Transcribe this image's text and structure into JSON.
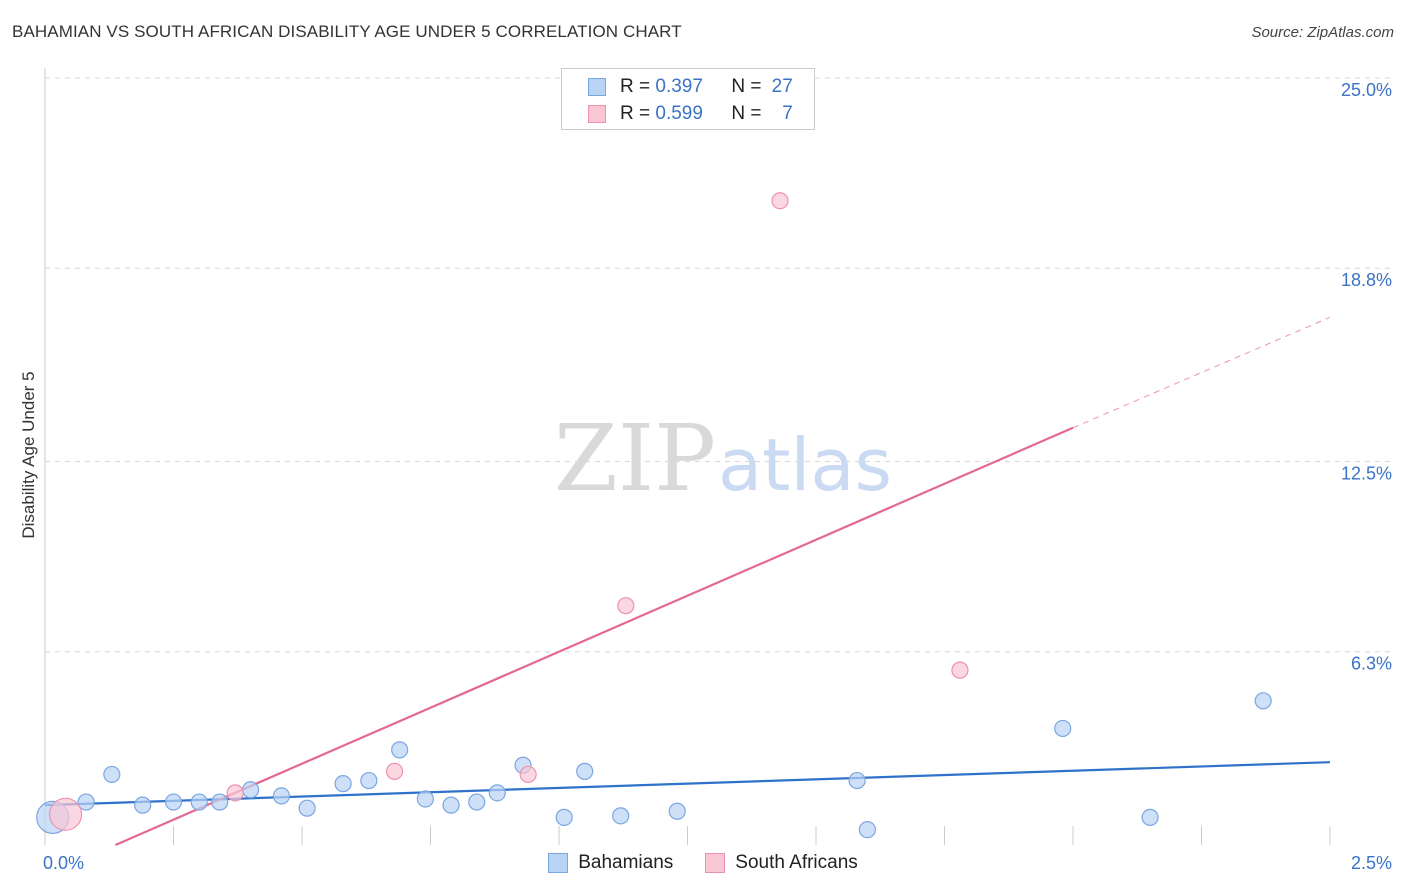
{
  "title": "BAHAMIAN VS SOUTH AFRICAN DISABILITY AGE UNDER 5 CORRELATION CHART",
  "source": "Source: ZipAtlas.com",
  "watermark": {
    "zip": "ZIP",
    "atlas": "atlas"
  },
  "colors": {
    "blue_fill": "#b9d3f5",
    "blue_stroke": "#7aa6e0",
    "blue_line": "#2f72c9",
    "pink_fill": "#f9c6d6",
    "pink_stroke": "#ec92ad",
    "pink_line": "#e4688f",
    "grid": "#d8d8d8",
    "label_blue": "#3b73c7"
  },
  "legend": {
    "rows": [
      {
        "swatch": "blue",
        "r_label": "R =",
        "r_value": "0.397",
        "n_label": "N =",
        "n_value": "27"
      },
      {
        "swatch": "pink",
        "r_label": "R =",
        "r_value": "0.599",
        "n_label": "N =",
        "n_value": "7"
      }
    ]
  },
  "bottom_legend": [
    {
      "swatch": "blue",
      "label": "Bahamians"
    },
    {
      "swatch": "pink",
      "label": "South Africans"
    }
  ],
  "chart_data": {
    "type": "scatter",
    "title": "BAHAMIAN VS SOUTH AFRICAN DISABILITY AGE UNDER 5 CORRELATION CHART",
    "xlabel": "",
    "ylabel": "Disability Age Under 5",
    "xlim": [
      0,
      2.5
    ],
    "ylim": [
      0,
      25.0
    ],
    "x_tick_labels": [
      "0.0%",
      "2.5%"
    ],
    "y_ticks": [
      6.3,
      12.5,
      18.8,
      25.0
    ],
    "y_tick_labels": [
      "6.3%",
      "12.5%",
      "18.8%",
      "25.0%"
    ],
    "grid": true,
    "legend_position": "top-center",
    "series": [
      {
        "name": "Bahamians",
        "color": "blue",
        "points": [
          {
            "x": 0.015,
            "y": 0.9,
            "size": "large"
          },
          {
            "x": 0.08,
            "y": 1.4
          },
          {
            "x": 0.13,
            "y": 2.3
          },
          {
            "x": 0.19,
            "y": 1.3
          },
          {
            "x": 0.25,
            "y": 1.4
          },
          {
            "x": 0.3,
            "y": 1.4
          },
          {
            "x": 0.34,
            "y": 1.4
          },
          {
            "x": 0.4,
            "y": 1.8
          },
          {
            "x": 0.46,
            "y": 1.6
          },
          {
            "x": 0.51,
            "y": 1.2
          },
          {
            "x": 0.58,
            "y": 2.0
          },
          {
            "x": 0.63,
            "y": 2.1
          },
          {
            "x": 0.69,
            "y": 3.1
          },
          {
            "x": 0.74,
            "y": 1.5
          },
          {
            "x": 0.79,
            "y": 1.3
          },
          {
            "x": 0.84,
            "y": 1.4
          },
          {
            "x": 0.88,
            "y": 1.7
          },
          {
            "x": 0.93,
            "y": 2.6
          },
          {
            "x": 1.01,
            "y": 0.9
          },
          {
            "x": 1.05,
            "y": 2.4
          },
          {
            "x": 1.12,
            "y": 0.95
          },
          {
            "x": 1.23,
            "y": 1.1
          },
          {
            "x": 1.58,
            "y": 2.1
          },
          {
            "x": 1.6,
            "y": 0.5
          },
          {
            "x": 1.98,
            "y": 3.8
          },
          {
            "x": 2.15,
            "y": 0.9
          },
          {
            "x": 2.37,
            "y": 4.7
          }
        ],
        "trendline": {
          "x0": 0.0,
          "y0": 1.3,
          "x1": 2.5,
          "y1": 2.7
        }
      },
      {
        "name": "South Africans",
        "color": "pink",
        "points": [
          {
            "x": 0.04,
            "y": 1.0,
            "size": "large"
          },
          {
            "x": 0.37,
            "y": 1.7
          },
          {
            "x": 0.68,
            "y": 2.4
          },
          {
            "x": 0.94,
            "y": 2.3
          },
          {
            "x": 1.13,
            "y": 7.8
          },
          {
            "x": 1.43,
            "y": 21.0
          },
          {
            "x": 1.78,
            "y": 5.7
          }
        ],
        "trendline": {
          "x0": 0.0,
          "y0": -1.0,
          "x1": 2.0,
          "y1": 13.6,
          "dashed_to_x": 2.5,
          "dashed_to_y": 17.2
        }
      }
    ]
  }
}
